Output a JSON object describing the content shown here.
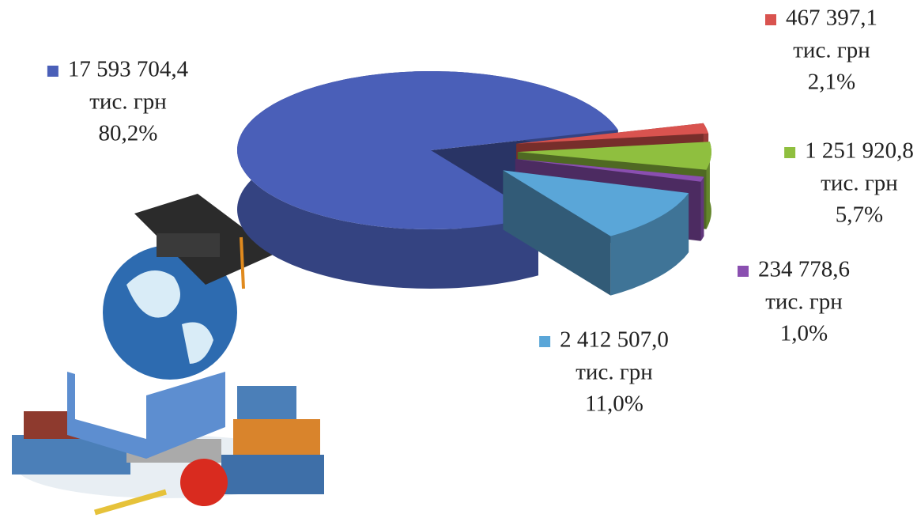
{
  "chart_data": {
    "type": "pie",
    "values": [
      80.2,
      2.1,
      5.7,
      1.0,
      11.0
    ],
    "value_labels": [
      "80,2%",
      "2,1%",
      "5,7%",
      "1,0%",
      "11,0%"
    ],
    "amounts": [
      17593704.4,
      467397.1,
      1251920.8,
      234778.6,
      2412507.0
    ],
    "amount_labels": [
      "17 593 704,4",
      "467 397,1",
      "1 251 920,8",
      "234 778,6",
      "2 412 507,0"
    ],
    "unit": "тис. грн",
    "colors": [
      "#4a5fb8",
      "#d9534f",
      "#8fbf3f",
      "#8a4fb0",
      "#5aa6d8"
    ]
  }
}
